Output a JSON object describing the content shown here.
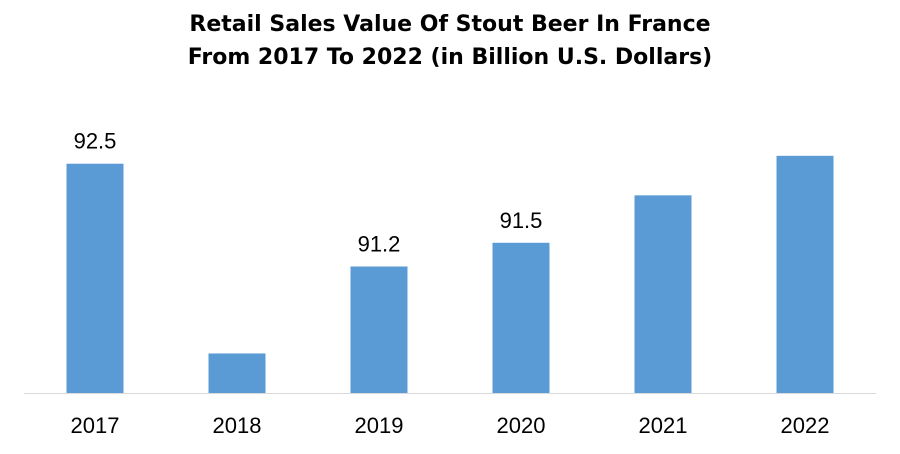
{
  "chart_data": {
    "type": "bar",
    "title_line1": "Retail Sales Value Of Stout Beer In France",
    "title_line2": "From 2017 To 2022 (in Billion U.S. Dollars)",
    "categories": [
      "2017",
      "2018",
      "2019",
      "2020",
      "2021",
      "2022"
    ],
    "values": [
      92.5,
      90.1,
      91.2,
      91.5,
      92.1,
      92.6
    ],
    "data_labels": [
      "92.5",
      "",
      "91.2",
      "91.5",
      "",
      ""
    ],
    "ylim": [
      89.6,
      92.8
    ],
    "grid": false,
    "bar_color": "#5b9bd5",
    "axis_color": "#d9d9d9"
  }
}
